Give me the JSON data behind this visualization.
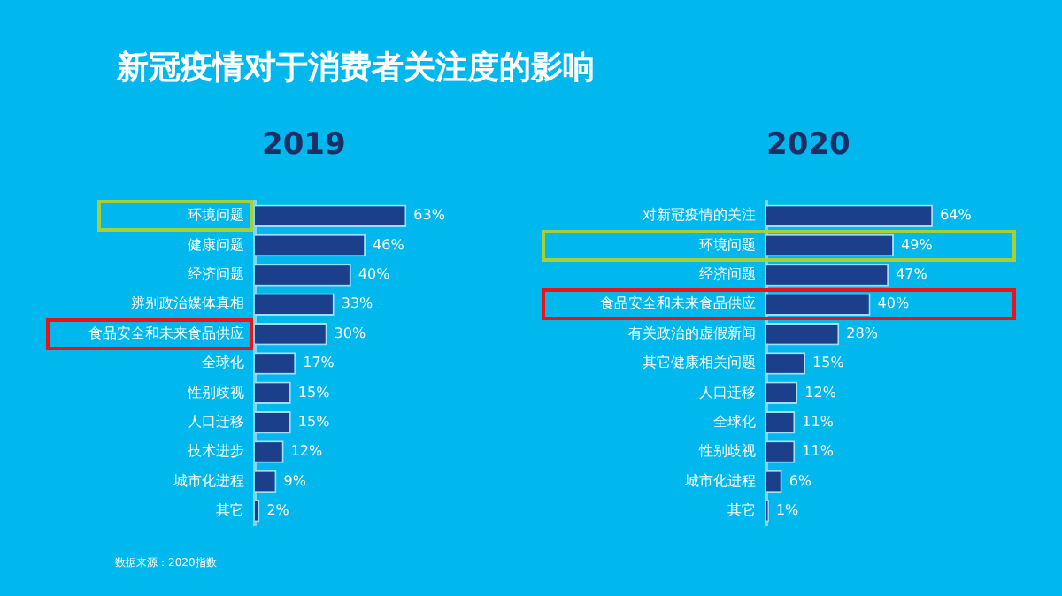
{
  "chart_data": [
    {
      "type": "bar",
      "orientation": "horizontal",
      "title": "新冠疫情对于消费者关注度的影响",
      "subtitle": "2019",
      "color": "#1c3f8c",
      "categories": [
        "环境问题",
        "健康问题",
        "经济问题",
        "辨别政治媒体真相",
        "食品安全和未来食品供应",
        "全球化",
        "性别歧视",
        "人口迁移",
        "技术进步",
        "城市化进程",
        "其它"
      ],
      "values": [
        63,
        46,
        40,
        33,
        30,
        17,
        15,
        15,
        12,
        9,
        2
      ],
      "value_labels": [
        "63%",
        "46%",
        "40%",
        "33%",
        "30%",
        "17%",
        "15%",
        "15%",
        "12%",
        "9%",
        "2%"
      ],
      "annotations": [
        "数据来源：2020指数"
      ]
    },
    {
      "type": "bar",
      "orientation": "horizontal",
      "subtitle": "2020",
      "color": "#1c3f8c",
      "categories": [
        "对新冠疫情的关注",
        "环境问题",
        "经济问题",
        "食品安全和未来食品供应",
        "有关政治的虚假新闻",
        "其它健康相关问题",
        "人口迁移",
        "全球化",
        "性别歧视",
        "城市化进程",
        "其它"
      ],
      "values": [
        64,
        49,
        47,
        40,
        28,
        15,
        12,
        11,
        11,
        6,
        1
      ],
      "value_labels": [
        "64%",
        "49%",
        "47%",
        "40%",
        "28%",
        "15%",
        "12%",
        "11%",
        "11%",
        "6%",
        "1%"
      ]
    }
  ]
}
